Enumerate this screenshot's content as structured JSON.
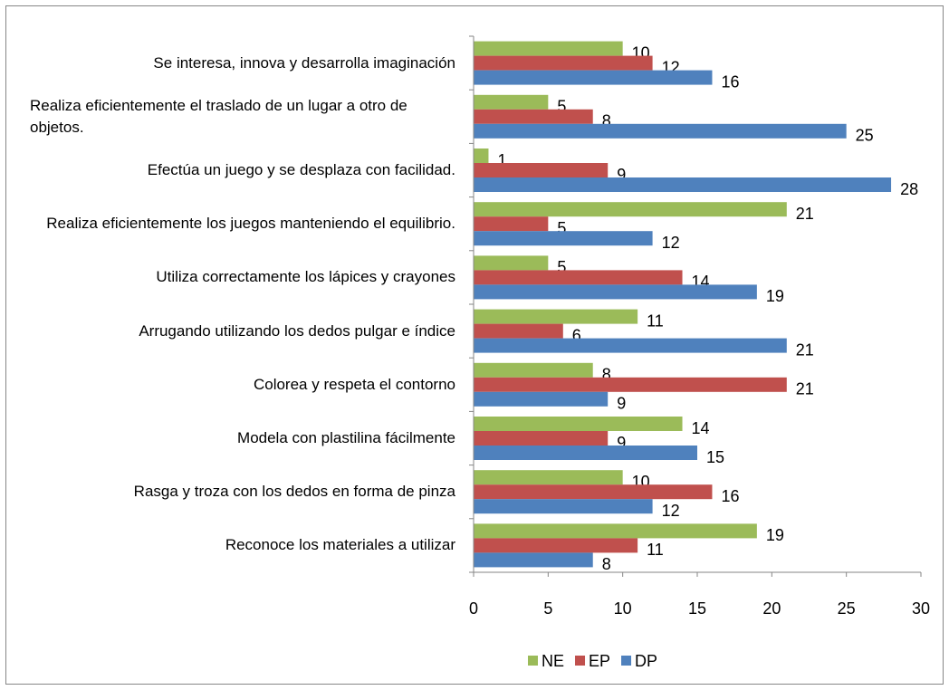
{
  "chart_data": {
    "type": "barh",
    "categories": [
      "Se interesa, innova y desarrolla imaginación",
      "Realiza eficientemente el traslado de un lugar a otro de objetos.",
      "Efectúa un juego y se desplaza con facilidad.",
      "Realiza eficientemente los juegos manteniendo el equilibrio.",
      "Utiliza correctamente los lápices y crayones",
      "Arrugando utilizando los dedos pulgar e índice",
      "Colorea y respeta el contorno",
      "Modela con plastilina fácilmente",
      "Rasga y troza con los dedos en forma de pinza",
      "Reconoce los materiales a utilizar"
    ],
    "series": [
      {
        "name": "NE",
        "color": "#9bbb59",
        "values": [
          10,
          5,
          1,
          21,
          5,
          11,
          8,
          14,
          10,
          19
        ]
      },
      {
        "name": "EP",
        "color": "#c0504d",
        "values": [
          12,
          8,
          9,
          5,
          14,
          6,
          21,
          9,
          16,
          11
        ]
      },
      {
        "name": "DP",
        "color": "#4f81bd",
        "values": [
          16,
          25,
          28,
          12,
          19,
          21,
          9,
          15,
          12,
          8
        ]
      }
    ],
    "xlim": [
      0,
      30
    ],
    "xticks": [
      0,
      5,
      10,
      15,
      20,
      25,
      30
    ],
    "grid": false,
    "legend": "bottom"
  }
}
